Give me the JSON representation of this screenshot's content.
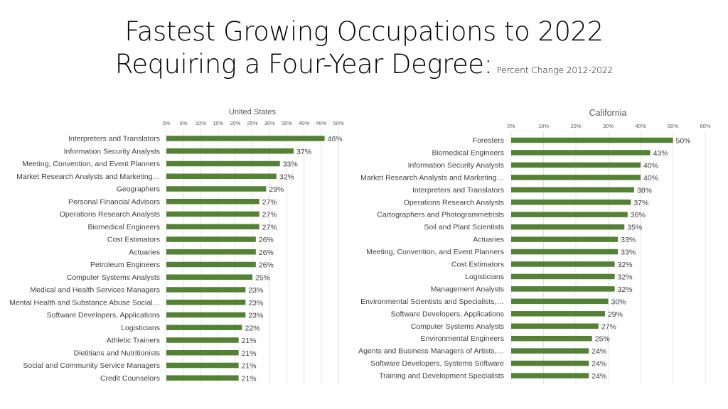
{
  "title": {
    "line1": "Fastest Growing Occupations to 2022",
    "line2": "Requiring a Four-Year Degree:",
    "subtitle": "Percent Change 2012-2022"
  },
  "bar_color": "#548235",
  "chart_data": [
    {
      "type": "bar",
      "orientation": "horizontal",
      "title": "United States",
      "xlim": [
        0,
        50
      ],
      "xticks": [
        0,
        5,
        10,
        15,
        20,
        25,
        30,
        35,
        40,
        45,
        50
      ],
      "tick_labels": [
        "0%",
        "5%",
        "10%",
        "15%",
        "20%",
        "25%",
        "30%",
        "35%",
        "40%",
        "45%",
        "50%"
      ],
      "categories": [
        "Interpreters and Translators",
        "Information Security Analysts",
        "Meeting, Convention, and Event Planners",
        "Market Research Analysts and Marketing…",
        "Geographers",
        "Personal Financial Advisors",
        "Operations Research Analysts",
        "Biomedical Engineers",
        "Cost Estimators",
        "Actuaries",
        "Petroleum Engineers",
        "Computer Systems Analysts",
        "Medical and Health Services Managers",
        "Mental Health and Substance Abuse Social…",
        "Software Developers, Applications",
        "Logisticians",
        "Athletic Trainers",
        "Dietitians and Nutritionists",
        "Social and Community Service Managers",
        "Credit Counselors"
      ],
      "values": [
        46,
        37,
        33,
        32,
        29,
        27,
        27,
        27,
        26,
        26,
        26,
        25,
        23,
        23,
        23,
        22,
        21,
        21,
        21,
        21
      ],
      "value_labels": [
        "46%",
        "37%",
        "33%",
        "32%",
        "29%",
        "27%",
        "27%",
        "27%",
        "26%",
        "26%",
        "26%",
        "25%",
        "23%",
        "23%",
        "23%",
        "22%",
        "21%",
        "21%",
        "21%",
        "21%"
      ]
    },
    {
      "type": "bar",
      "orientation": "horizontal",
      "title": "California",
      "xlim": [
        0,
        60
      ],
      "xticks": [
        0,
        10,
        20,
        30,
        40,
        50,
        60
      ],
      "tick_labels": [
        "0%",
        "10%",
        "20%",
        "30%",
        "40%",
        "50%",
        "60%"
      ],
      "categories": [
        "Foresters",
        "Biomedical Engineers",
        "Information Security Analysts",
        "Market Research Analysts and Marketing…",
        "Interpreters and Translators",
        "Operations Research Analysts",
        "Cartographers and Photogrammetrists",
        "Soil and Plant Scientists",
        "Actuaries",
        "Meeting, Convention, and Event Planners",
        "Cost Estimators",
        "Logisticians",
        "Management Analysts",
        "Environmental Scientists and Specialists,…",
        "Software Developers, Applications",
        "Computer Systems Analysts",
        "Environmental Engineers",
        "Agents and Business Managers of Artists,…",
        "Software Developers, Systems Software",
        "Training and Development Specialists"
      ],
      "values": [
        50,
        43,
        40,
        40,
        38,
        37,
        36,
        35,
        33,
        33,
        32,
        32,
        32,
        30,
        29,
        27,
        25,
        24,
        24,
        24
      ],
      "value_labels": [
        "50%",
        "43%",
        "40%",
        "40%",
        "38%",
        "37%",
        "36%",
        "35%",
        "33%",
        "33%",
        "32%",
        "32%",
        "32%",
        "30%",
        "29%",
        "27%",
        "25%",
        "24%",
        "24%",
        "24%"
      ]
    }
  ]
}
